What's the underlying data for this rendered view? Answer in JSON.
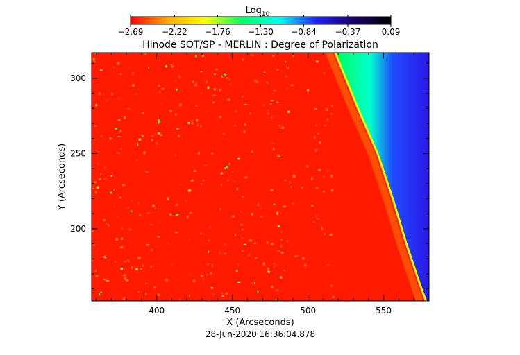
{
  "colorbar": {
    "title": "Log",
    "title_subscript": "10",
    "tick_labels": [
      "-2.69",
      "-2.22",
      "-1.76",
      "-1.30",
      "-0.84",
      "-0.37",
      "0.09"
    ],
    "range": [
      -2.69,
      0.09
    ],
    "colors": [
      "#ff0000",
      "#ffaa00",
      "#ffff00",
      "#00ff66",
      "#00ffee",
      "#2222ff",
      "#1a0066",
      "#000000"
    ]
  },
  "chart_data": {
    "type": "heatmap",
    "title": "Hinode SOT/SP - MERLIN : Degree of Polarization",
    "xlabel": "X (Arcseconds)",
    "ylabel": "Y (Arcseconds)",
    "xlim": [
      357,
      580
    ],
    "ylim": [
      152,
      317
    ],
    "x_ticks": [
      400,
      450,
      500,
      550
    ],
    "y_ticks": [
      200,
      250,
      300
    ],
    "value_unit": "log10 degree of polarization",
    "value_range": [
      -2.69,
      0.09
    ],
    "limb_x_at_y": [
      [
        317,
        518
      ],
      [
        280,
        533
      ],
      [
        250,
        546
      ],
      [
        220,
        556
      ],
      [
        190,
        565
      ],
      [
        160,
        575
      ],
      [
        152,
        578
      ]
    ],
    "regions": [
      {
        "name": "disk",
        "log_value": -2.6,
        "color": "#ff1a00"
      },
      {
        "name": "limb",
        "log_value": -1.9,
        "color": "#f0d000"
      },
      {
        "name": "off-limb near",
        "log_value": -1.2,
        "color": "#00ff66"
      },
      {
        "name": "off-limb far",
        "log_value": -0.5,
        "color": "#2a28ff"
      }
    ]
  },
  "footer": {
    "timestamp": "28-Jun-2020 16:36:04.878"
  }
}
